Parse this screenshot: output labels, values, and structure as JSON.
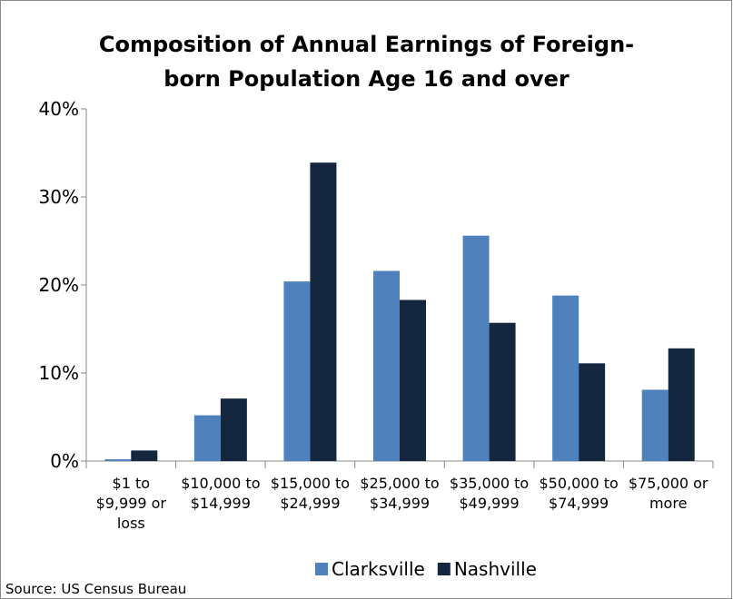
{
  "chart_data": {
    "type": "bar",
    "title": "Composition of Annual Earnings of Foreign-born Population Age 16 and over",
    "categories": [
      "$1 to $9,999 or loss",
      "$10,000 to $14,999",
      "$15,000 to $24,999",
      "$25,000 to $34,999",
      "$35,000 to $49,999",
      "$50,000 to $74,999",
      "$75,000 or more"
    ],
    "series": [
      {
        "name": "Clarksville",
        "color": "#4f81bd",
        "values": [
          0.2,
          5.2,
          20.4,
          21.6,
          25.6,
          18.8,
          8.1
        ]
      },
      {
        "name": "Nashville",
        "color": "#14273f",
        "values": [
          1.2,
          7.1,
          33.9,
          18.3,
          15.7,
          11.1,
          12.8
        ]
      }
    ],
    "ylim": [
      0,
      40
    ],
    "yticks": [
      {
        "value": 0,
        "label": "0%"
      },
      {
        "value": 10,
        "label": "10%"
      },
      {
        "value": 20,
        "label": "20%"
      },
      {
        "value": 30,
        "label": "30%"
      },
      {
        "value": 40,
        "label": "40%"
      }
    ],
    "legend": "bottom",
    "source": "Source: US Census Bureau"
  }
}
